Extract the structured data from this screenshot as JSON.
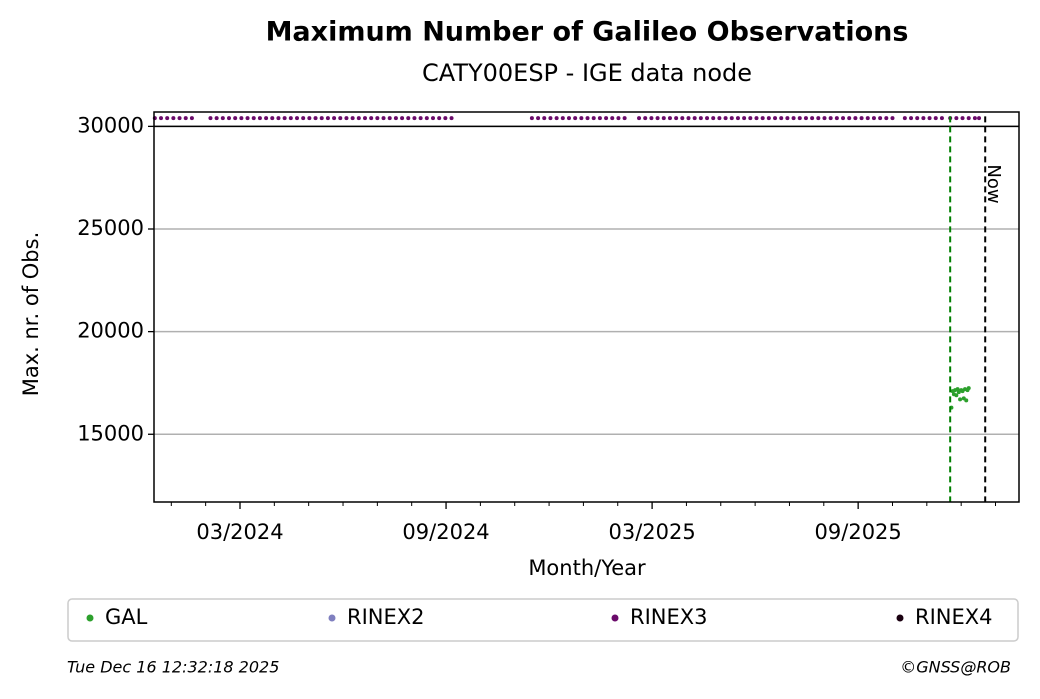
{
  "chart_data": {
    "type": "scatter",
    "title": "Maximum Number of Galileo Observations",
    "subtitle": "CATY00ESP - IGE data node",
    "xlabel": "Month/Year",
    "ylabel": "Max. nr. of Obs.",
    "xlim": [
      2023.958,
      2026.057
    ],
    "ylim": [
      11700,
      30700
    ],
    "xticks": [
      {
        "value": 2024.1667,
        "label": "03/2024"
      },
      {
        "value": 2024.6667,
        "label": "09/2024"
      },
      {
        "value": 2025.1667,
        "label": "03/2025"
      },
      {
        "value": 2025.6667,
        "label": "09/2025"
      }
    ],
    "xminorticks": [
      2024.0,
      2024.0833,
      2024.25,
      2024.3333,
      2024.4167,
      2024.5,
      2024.5833,
      2024.75,
      2024.8333,
      2024.9167,
      2025.0,
      2025.0833,
      2025.25,
      2025.3333,
      2025.4167,
      2025.5,
      2025.5833,
      2025.75,
      2025.8333,
      2025.9167,
      2026.0
    ],
    "yticks": [
      15000,
      20000,
      25000,
      30000
    ],
    "grid": true,
    "hline": {
      "y": 30000,
      "color": "#000000"
    },
    "vlines": [
      {
        "x": 2025.89,
        "color": "#008000"
      },
      {
        "x": 2025.975,
        "color": "#000000",
        "label": "Now"
      }
    ],
    "legend": "bottom",
    "series": [
      {
        "name": "GAL",
        "color": "#2ca02c",
        "x": [
          2025.893,
          2025.896,
          2025.899,
          2025.902,
          2025.905,
          2025.908,
          2025.911,
          2025.914,
          2025.917,
          2025.92,
          2025.923,
          2025.926,
          2025.929,
          2025.932,
          2025.935
        ],
        "values": [
          16300,
          17100,
          16950,
          17150,
          16900,
          17200,
          17050,
          16700,
          17150,
          17100,
          16750,
          17200,
          16650,
          17150,
          17250
        ]
      },
      {
        "name": "RINEX2",
        "color": "#7f7fbf",
        "x": [],
        "values": []
      },
      {
        "name": "RINEX3",
        "color": "#6a0a6a",
        "x": [
          2023.96,
          2023.975,
          2023.99,
          2024.005,
          2024.02,
          2024.035,
          2024.05,
          2024.095,
          2024.11,
          2024.125,
          2024.14,
          2024.155,
          2024.17,
          2024.185,
          2024.2,
          2024.215,
          2024.23,
          2024.245,
          2024.26,
          2024.275,
          2024.29,
          2024.305,
          2024.32,
          2024.335,
          2024.35,
          2024.365,
          2024.38,
          2024.395,
          2024.41,
          2024.425,
          2024.44,
          2024.455,
          2024.47,
          2024.485,
          2024.5,
          2024.515,
          2024.53,
          2024.545,
          2024.56,
          2024.575,
          2024.59,
          2024.605,
          2024.62,
          2024.635,
          2024.65,
          2024.665,
          2024.68,
          2024.875,
          2024.89,
          2024.905,
          2024.92,
          2024.935,
          2024.95,
          2024.965,
          2024.98,
          2024.995,
          2025.01,
          2025.025,
          2025.04,
          2025.055,
          2025.07,
          2025.085,
          2025.1,
          2025.135,
          2025.15,
          2025.165,
          2025.18,
          2025.195,
          2025.21,
          2025.225,
          2025.24,
          2025.255,
          2025.27,
          2025.285,
          2025.3,
          2025.315,
          2025.33,
          2025.345,
          2025.36,
          2025.375,
          2025.39,
          2025.405,
          2025.42,
          2025.435,
          2025.45,
          2025.465,
          2025.48,
          2025.495,
          2025.51,
          2025.525,
          2025.54,
          2025.555,
          2025.57,
          2025.585,
          2025.6,
          2025.615,
          2025.63,
          2025.645,
          2025.66,
          2025.675,
          2025.69,
          2025.705,
          2025.72,
          2025.735,
          2025.75,
          2025.78,
          2025.795,
          2025.81,
          2025.825,
          2025.84,
          2025.855,
          2025.87,
          2025.89,
          2025.905,
          2025.92,
          2025.935,
          2025.95,
          2025.96
        ],
        "values": [
          30400,
          30400,
          30400,
          30400,
          30400,
          30400,
          30400,
          30400,
          30400,
          30400,
          30400,
          30400,
          30400,
          30400,
          30400,
          30400,
          30400,
          30400,
          30400,
          30400,
          30400,
          30400,
          30400,
          30400,
          30400,
          30400,
          30400,
          30400,
          30400,
          30400,
          30400,
          30400,
          30400,
          30400,
          30400,
          30400,
          30400,
          30400,
          30400,
          30400,
          30400,
          30400,
          30400,
          30400,
          30400,
          30400,
          30400,
          30400,
          30400,
          30400,
          30400,
          30400,
          30400,
          30400,
          30400,
          30400,
          30400,
          30400,
          30400,
          30400,
          30400,
          30400,
          30400,
          30400,
          30400,
          30400,
          30400,
          30400,
          30400,
          30400,
          30400,
          30400,
          30400,
          30400,
          30400,
          30400,
          30400,
          30400,
          30400,
          30400,
          30400,
          30400,
          30400,
          30400,
          30400,
          30400,
          30400,
          30400,
          30400,
          30400,
          30400,
          30400,
          30400,
          30400,
          30400,
          30400,
          30400,
          30400,
          30400,
          30400,
          30400,
          30400,
          30400,
          30400,
          30400,
          30400,
          30400,
          30400,
          30400,
          30400,
          30400,
          30400,
          30400,
          30400,
          30400,
          30400,
          30400,
          30400
        ]
      },
      {
        "name": "RINEX4",
        "color": "#1a0010",
        "x": [],
        "values": []
      }
    ],
    "footer_left": "Tue Dec 16 12:32:18 2025",
    "footer_right": "©GNSS@ROB"
  }
}
